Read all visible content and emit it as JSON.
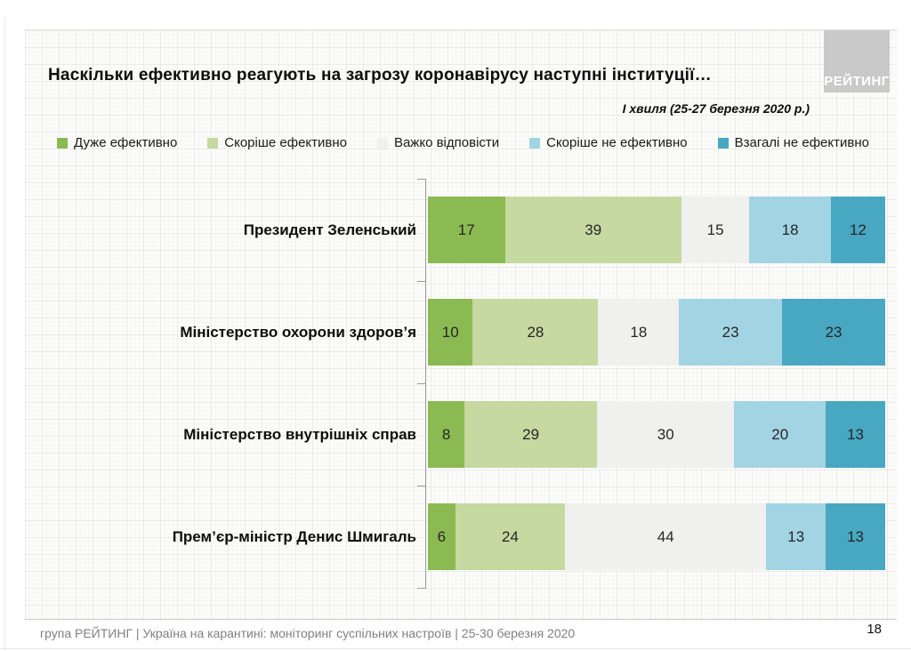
{
  "header": {
    "logo_text": "РЕЙТИНГ"
  },
  "chart_data": {
    "type": "bar",
    "orientation": "horizontal",
    "stacked": true,
    "normalized_to_100": true,
    "title": "Наскільки ефективно реагують на загрозу коронавірусу наступні інституції…",
    "subtitle": "І хвиля (25-27 березня 2020 р.)",
    "legend_position": "top",
    "xlim": [
      0,
      100
    ],
    "values_shown": true,
    "categories": [
      "Президент Зеленський",
      "Міністерство охорони здоров’я",
      "Міністерство внутрішніх справ",
      "Прем’єр-міністр Денис Шмигаль"
    ],
    "series": [
      {
        "name": "Дуже ефективно",
        "color": "#8cba52",
        "values": [
          17,
          10,
          8,
          6
        ]
      },
      {
        "name": "Скоріше ефективно",
        "color": "#c5d9a0",
        "values": [
          39,
          28,
          29,
          24
        ]
      },
      {
        "name": "Важко відповісти",
        "color": "#f0f0ee",
        "values": [
          15,
          18,
          30,
          44
        ]
      },
      {
        "name": "Скоріше не ефективно",
        "color": "#a3d4e3",
        "values": [
          18,
          23,
          20,
          13
        ]
      },
      {
        "name": "Взагалі не ефективно",
        "color": "#48a7c1",
        "values": [
          12,
          23,
          13,
          13
        ]
      }
    ]
  },
  "footer": {
    "text": "група РЕЙТИНГ  |  Україна на карантині: моніторинг суспільних настроїв  |  25-30 березня 2020",
    "page_number": "18"
  }
}
